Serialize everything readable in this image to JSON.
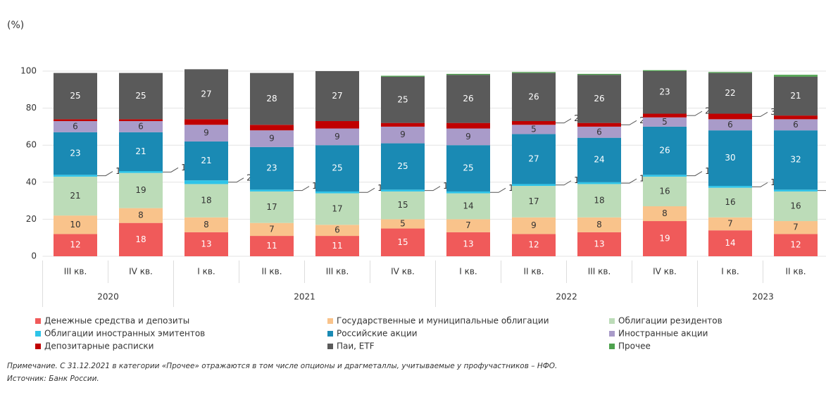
{
  "chart_data": {
    "type": "stacked_bar",
    "ylabel": "(%)",
    "categories": [
      "III кв.",
      "IV кв.",
      "I кв.",
      "II кв.",
      "III кв.",
      "IV кв.",
      "I кв.",
      "II кв.",
      "III кв.",
      "IV кв.",
      "I кв.",
      "II кв."
    ],
    "years": [
      "2020",
      "2021",
      "2022",
      "2023"
    ],
    "years_span": [
      2,
      4,
      4,
      2
    ],
    "ylim": [
      0,
      100
    ],
    "yticks": [
      0,
      20,
      40,
      60,
      80,
      100
    ],
    "series": [
      {
        "name": "Денежные средства и депозиты",
        "color": "#f05a5a",
        "label_color": "#ffffff",
        "values": [
          12,
          18,
          13,
          11,
          11,
          15,
          13,
          12,
          13,
          19,
          14,
          12
        ]
      },
      {
        "name": "Государственные и муниципальные облигации",
        "color": "#f9c38b",
        "label_color": "#333333",
        "values": [
          10,
          8,
          8,
          7,
          6,
          5,
          7,
          9,
          8,
          8,
          7,
          7
        ]
      },
      {
        "name": "Облигации резидентов",
        "color": "#bcdcb8",
        "label_color": "#333333",
        "values": [
          21,
          19,
          18,
          17,
          17,
          15,
          14,
          17,
          18,
          16,
          16,
          16
        ]
      },
      {
        "name": "Облигации иностранных эмитентов",
        "color": "#2ec4e8",
        "label_color": "#333333",
        "callout": true,
        "values": [
          1,
          1,
          2,
          1,
          1,
          1,
          1,
          1,
          1,
          1,
          1,
          1
        ]
      },
      {
        "name": "Российские акции",
        "color": "#1a8ab4",
        "label_color": "#ffffff",
        "values": [
          23,
          21,
          21,
          23,
          25,
          25,
          25,
          27,
          24,
          26,
          30,
          32
        ]
      },
      {
        "name": "Иностранные акции",
        "color": "#a99bc9",
        "label_color": "#333333",
        "values": [
          6,
          6,
          9,
          9,
          9,
          9,
          9,
          5,
          6,
          5,
          6,
          6
        ]
      },
      {
        "name": "Депозитарные расписки",
        "color": "#c00000",
        "label_color": "#333333",
        "callout": true,
        "values": [
          1,
          1,
          3,
          3,
          4,
          2,
          3,
          2,
          2,
          2,
          3,
          2
        ],
        "value_labels": [
          null,
          null,
          null,
          null,
          null,
          null,
          null,
          "2",
          "2",
          "2",
          "3",
          null
        ]
      },
      {
        "name": "Паи, ETF",
        "color": "#5a5a5a",
        "label_color": "#ffffff",
        "values": [
          25,
          25,
          27,
          28,
          27,
          25,
          26,
          26,
          26,
          23,
          22,
          21
        ]
      },
      {
        "name": "Прочее",
        "color": "#4ea24e",
        "label_color": "#333333",
        "no_labels": true,
        "values": [
          0,
          0,
          0,
          0,
          0,
          0.5,
          0.5,
          0.5,
          0.5,
          0.5,
          0.5,
          1
        ]
      }
    ],
    "notes": [
      "Примечание. С 31.12.2021 в категории «Прочее» отражаются в том числе опционы и драгметаллы, учитываемые у профучастников – НФО.",
      "Источник: Банк России."
    ]
  }
}
